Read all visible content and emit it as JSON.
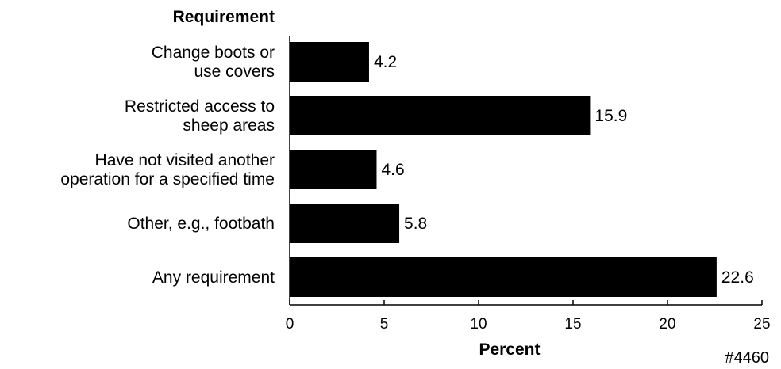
{
  "chart_data": {
    "type": "bar",
    "orientation": "horizontal",
    "y_axis_title": "Requirement",
    "xlabel": "Percent",
    "categories": [
      [
        "Change boots or",
        "use covers"
      ],
      [
        "Restricted access to",
        "sheep areas"
      ],
      [
        "Have not visited another",
        "operation for a specified time"
      ],
      [
        "Other, e.g., footbath"
      ],
      [
        "Any requirement"
      ]
    ],
    "values": [
      4.2,
      15.9,
      4.6,
      5.8,
      22.6
    ],
    "data_labels": [
      "4.2",
      "15.9",
      "4.6",
      "5.8",
      "22.6"
    ],
    "xlim": [
      0,
      25
    ],
    "x_ticks": [
      0,
      5,
      10,
      15,
      20,
      25
    ],
    "bar_color": "#000000",
    "grid": false,
    "legend": "none"
  },
  "figure_id": "#4460"
}
